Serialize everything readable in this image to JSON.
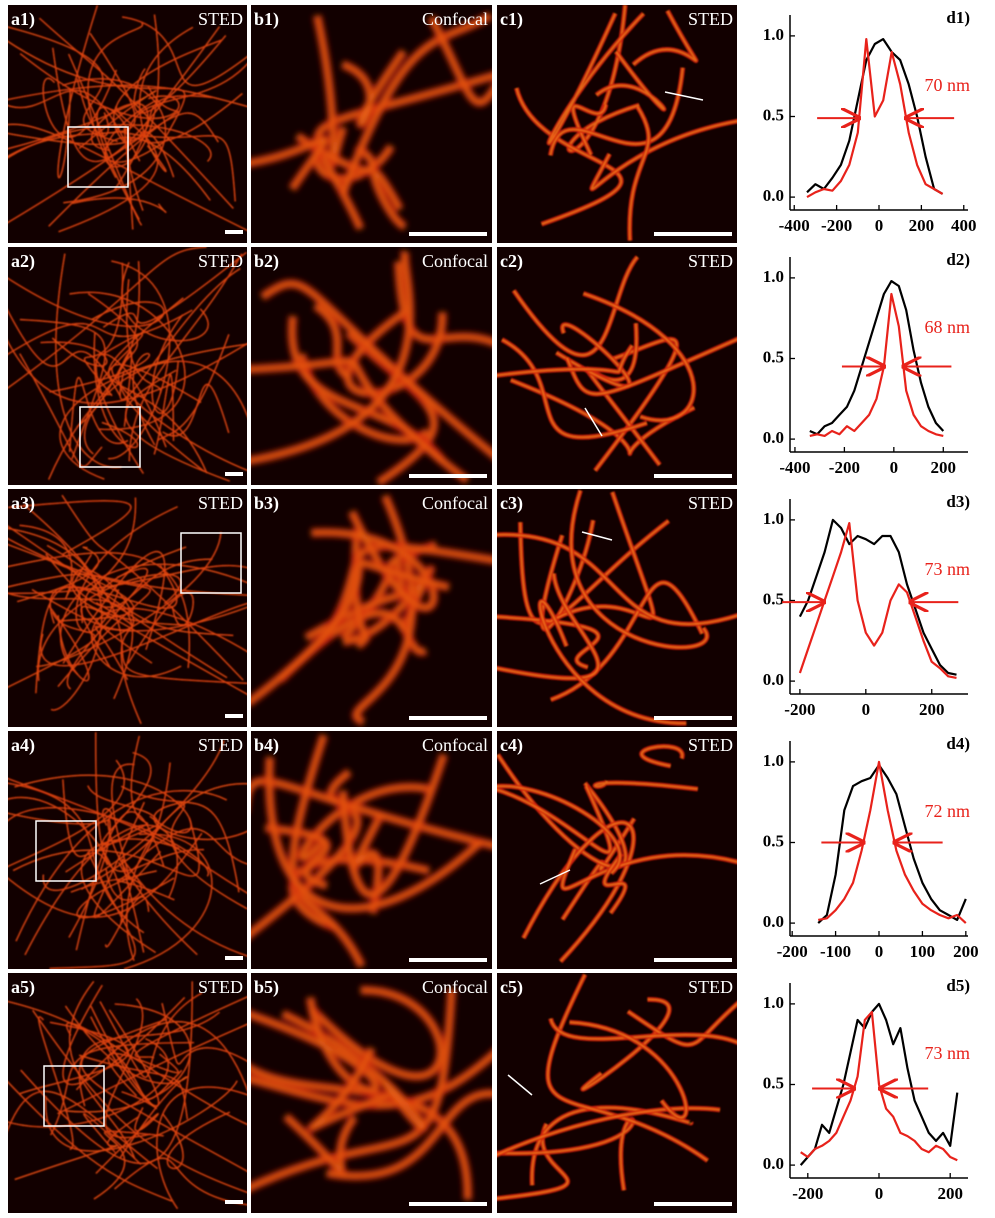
{
  "panels": [
    {
      "a": {
        "label": "a1)",
        "mode": "STED"
      },
      "b": {
        "label": "b1)",
        "mode": "Confocal"
      },
      "c": {
        "label": "c1)",
        "mode": "STED"
      }
    },
    {
      "a": {
        "label": "a2)",
        "mode": "STED"
      },
      "b": {
        "label": "b2)",
        "mode": "Confocal"
      },
      "c": {
        "label": "c2)",
        "mode": "STED"
      }
    },
    {
      "a": {
        "label": "a3)",
        "mode": "STED"
      },
      "b": {
        "label": "b3)",
        "mode": "Confocal"
      },
      "c": {
        "label": "c3)",
        "mode": "STED"
      }
    },
    {
      "a": {
        "label": "a4)",
        "mode": "STED"
      },
      "b": {
        "label": "b4)",
        "mode": "Confocal"
      },
      "c": {
        "label": "c4)",
        "mode": "STED"
      }
    },
    {
      "a": {
        "label": "a5)",
        "mode": "STED"
      },
      "b": {
        "label": "b5)",
        "mode": "Confocal"
      },
      "c": {
        "label": "c5)",
        "mode": "STED"
      }
    }
  ],
  "chart_data": [
    {
      "type": "line",
      "label": "d1)",
      "annotation": "70 nm",
      "x": [
        -340,
        -300,
        -260,
        -220,
        -180,
        -140,
        -100,
        -60,
        -20,
        20,
        60,
        100,
        140,
        180,
        220,
        260,
        300
      ],
      "series": [
        {
          "color": "#000000",
          "values": [
            0.03,
            0.08,
            0.05,
            0.12,
            0.2,
            0.35,
            0.6,
            0.85,
            0.95,
            0.98,
            0.9,
            0.85,
            0.7,
            0.5,
            0.25,
            0.05,
            0.02
          ]
        },
        {
          "color": "#e8221b",
          "values": [
            0.0,
            0.03,
            0.05,
            0.04,
            0.1,
            0.2,
            0.4,
            0.98,
            0.5,
            0.6,
            0.9,
            0.7,
            0.4,
            0.2,
            0.08,
            0.05,
            0.02
          ]
        }
      ],
      "xlim": [
        -420,
        420
      ],
      "ylim": [
        -0.08,
        1.08
      ],
      "xticks": [
        -400,
        -200,
        0,
        200,
        400
      ],
      "yticks": [
        {
          "value": 0,
          "label": "0.0"
        },
        0.5,
        {
          "value": 1,
          "label": "1.0"
        }
      ]
    },
    {
      "type": "line",
      "label": "d2)",
      "annotation": "68 nm",
      "x": [
        -340,
        -310,
        -280,
        -250,
        -220,
        -190,
        -160,
        -130,
        -100,
        -70,
        -40,
        -10,
        20,
        50,
        80,
        110,
        140,
        170,
        200
      ],
      "series": [
        {
          "color": "#000000",
          "values": [
            0.05,
            0.03,
            0.08,
            0.1,
            0.15,
            0.2,
            0.3,
            0.45,
            0.6,
            0.75,
            0.9,
            0.98,
            0.95,
            0.8,
            0.55,
            0.35,
            0.2,
            0.1,
            0.05
          ]
        },
        {
          "color": "#e8221b",
          "values": [
            0.02,
            0.03,
            0.02,
            0.05,
            0.03,
            0.08,
            0.05,
            0.1,
            0.15,
            0.25,
            0.45,
            0.9,
            0.7,
            0.3,
            0.15,
            0.08,
            0.05,
            0.03,
            0.02
          ]
        }
      ],
      "xlim": [
        -420,
        300
      ],
      "ylim": [
        -0.08,
        1.08
      ],
      "xticks": [
        -400,
        -200,
        0,
        200
      ],
      "yticks": [
        {
          "value": 0,
          "label": "0.0"
        },
        0.5,
        {
          "value": 1,
          "label": "1.0"
        }
      ]
    },
    {
      "type": "line",
      "label": "d3)",
      "annotation": "73 nm",
      "x": [
        -200,
        -175,
        -150,
        -125,
        -100,
        -75,
        -50,
        -25,
        0,
        25,
        50,
        75,
        100,
        125,
        150,
        175,
        200,
        225,
        250,
        275
      ],
      "series": [
        {
          "color": "#000000",
          "values": [
            0.4,
            0.5,
            0.65,
            0.8,
            1.0,
            0.95,
            0.85,
            0.9,
            0.88,
            0.85,
            0.9,
            0.9,
            0.8,
            0.6,
            0.45,
            0.3,
            0.2,
            0.1,
            0.05,
            0.04
          ]
        },
        {
          "color": "#e8221b",
          "values": [
            0.05,
            0.2,
            0.35,
            0.5,
            0.65,
            0.8,
            0.98,
            0.5,
            0.3,
            0.22,
            0.3,
            0.5,
            0.6,
            0.55,
            0.4,
            0.25,
            0.12,
            0.08,
            0.03,
            0.02
          ]
        }
      ],
      "xlim": [
        -230,
        310
      ],
      "ylim": [
        -0.08,
        1.08
      ],
      "xticks": [
        -200,
        0,
        200
      ],
      "yticks": [
        {
          "value": 0,
          "label": "0.0"
        },
        0.5,
        {
          "value": 1,
          "label": "1.0"
        }
      ]
    },
    {
      "type": "line",
      "label": "d4)",
      "annotation": "72 nm",
      "x": [
        -140,
        -120,
        -100,
        -80,
        -60,
        -40,
        -20,
        0,
        20,
        40,
        60,
        80,
        100,
        120,
        140,
        160,
        180,
        200
      ],
      "series": [
        {
          "color": "#000000",
          "values": [
            0.0,
            0.05,
            0.3,
            0.7,
            0.85,
            0.88,
            0.9,
            0.98,
            0.9,
            0.8,
            0.6,
            0.4,
            0.25,
            0.15,
            0.08,
            0.05,
            0.02,
            0.15
          ]
        },
        {
          "color": "#e8221b",
          "values": [
            0.02,
            0.03,
            0.08,
            0.15,
            0.25,
            0.45,
            0.7,
            1.0,
            0.7,
            0.45,
            0.3,
            0.2,
            0.12,
            0.08,
            0.05,
            0.03,
            0.05,
            0.0
          ]
        }
      ],
      "xlim": [
        -205,
        205
      ],
      "ylim": [
        -0.08,
        1.08
      ],
      "xticks": [
        -200,
        -100,
        0,
        100,
        200
      ],
      "yticks": [
        {
          "value": 0,
          "label": "0.0"
        },
        0.5,
        {
          "value": 1,
          "label": "1.0"
        }
      ]
    },
    {
      "type": "line",
      "label": "d5)",
      "annotation": "73 nm",
      "x": [
        -220,
        -200,
        -180,
        -160,
        -140,
        -120,
        -100,
        -80,
        -60,
        -40,
        -20,
        0,
        20,
        40,
        60,
        80,
        100,
        120,
        140,
        160,
        180,
        200,
        220
      ],
      "series": [
        {
          "color": "#000000",
          "values": [
            0.0,
            0.05,
            0.1,
            0.25,
            0.2,
            0.35,
            0.5,
            0.7,
            0.9,
            0.85,
            0.95,
            1.0,
            0.9,
            0.75,
            0.85,
            0.6,
            0.4,
            0.3,
            0.2,
            0.15,
            0.2,
            0.12,
            0.45
          ]
        },
        {
          "color": "#e8221b",
          "values": [
            0.08,
            0.05,
            0.1,
            0.12,
            0.15,
            0.2,
            0.3,
            0.4,
            0.55,
            0.9,
            0.95,
            0.5,
            0.35,
            0.3,
            0.2,
            0.18,
            0.15,
            0.1,
            0.08,
            0.12,
            0.1,
            0.05,
            0.03
          ]
        }
      ],
      "xlim": [
        -250,
        250
      ],
      "ylim": [
        -0.08,
        1.08
      ],
      "xticks": [
        -200,
        0,
        200
      ],
      "yticks": [
        {
          "value": 0,
          "label": "0.0"
        },
        0.5,
        {
          "value": 1,
          "label": "1.0"
        }
      ]
    }
  ]
}
